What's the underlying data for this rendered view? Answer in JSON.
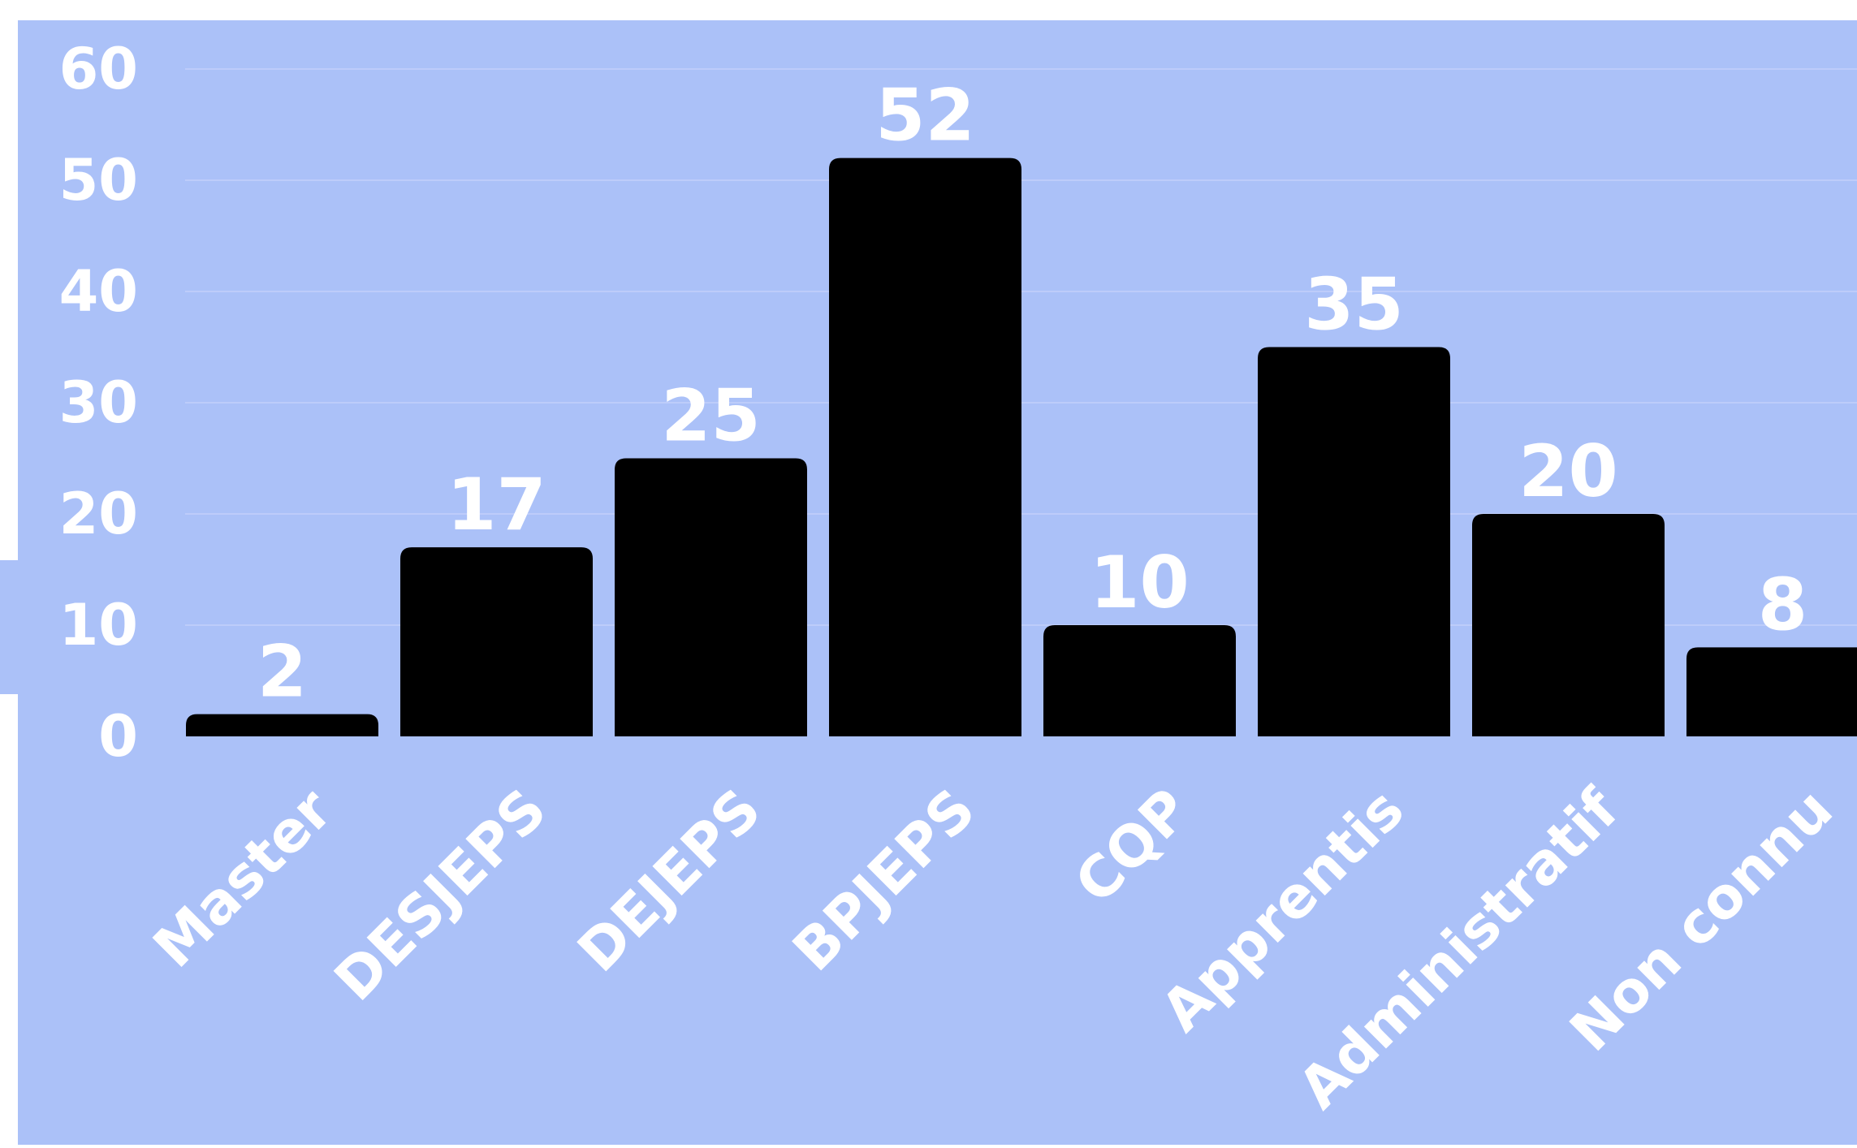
{
  "chart_data": {
    "type": "bar",
    "categories": [
      "Master",
      "DESJEPS",
      "DEJEPS",
      "BPJEPS",
      "CQP",
      "Apprentis",
      "Administratif",
      "Non connu"
    ],
    "values": [
      2,
      17,
      25,
      52,
      10,
      35,
      20,
      8
    ],
    "yticks": [
      "0",
      "10",
      "20",
      "30",
      "40",
      "50",
      "60"
    ],
    "ylim": [
      0,
      60
    ],
    "grid": true,
    "legend": "none",
    "colors": {
      "background": "#abc1f8",
      "bar": "#000000",
      "text": "#ffffff",
      "gridline": "#c3cffb"
    }
  }
}
